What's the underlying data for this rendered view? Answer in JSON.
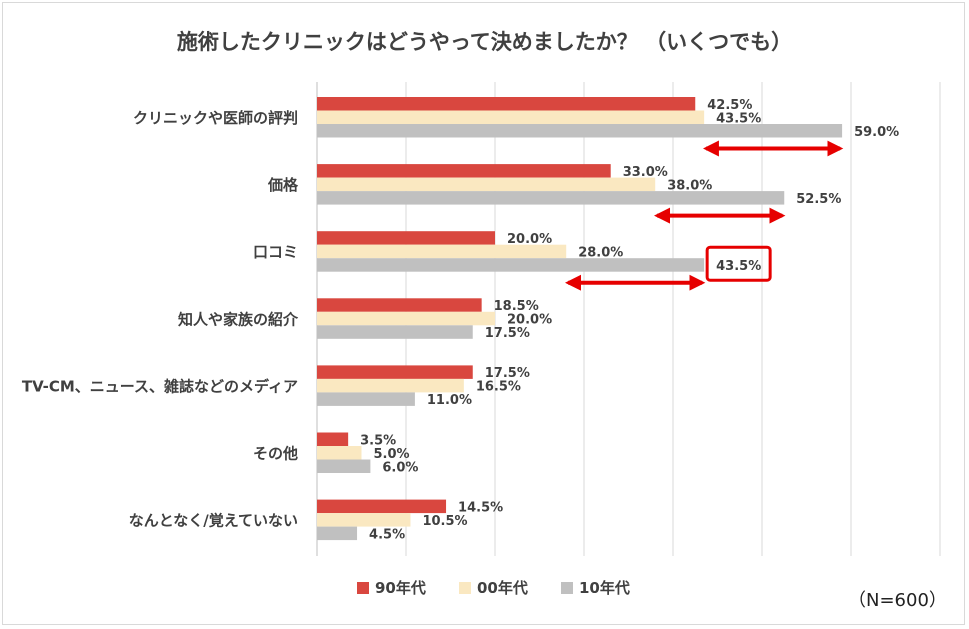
{
  "chart_data": {
    "type": "bar",
    "orientation": "horizontal",
    "title": "施術したクリニックはどうやって決めましたか？ （いくつでも）",
    "categories": [
      "クリニックや医師の評判",
      "価格",
      "口コミ",
      "知人や家族の紹介",
      "TV-CM、ニュース、雑誌などのメディア",
      "その他",
      "なんとなく/覚えていない"
    ],
    "series": [
      {
        "name": "90年代",
        "color": "#d9473f",
        "values": [
          42.5,
          33.0,
          20.0,
          18.5,
          17.5,
          3.5,
          14.5
        ],
        "labels": [
          "42.5%",
          "33.0%",
          "20.0%",
          "18.5%",
          "17.5%",
          "3.5%",
          "14.5%"
        ]
      },
      {
        "name": "00年代",
        "color": "#fae8c1",
        "values": [
          43.5,
          38.0,
          28.0,
          20.0,
          16.5,
          5.0,
          10.5
        ],
        "labels": [
          "43.5%",
          "38.0%",
          "28.0%",
          "20.0%",
          "16.5%",
          "5.0%",
          "10.5%"
        ]
      },
      {
        "name": "10年代",
        "color": "#c0c0c0",
        "values": [
          59.0,
          52.5,
          43.5,
          17.5,
          11.0,
          6.0,
          4.5
        ],
        "labels": [
          "59.0%",
          "52.5%",
          "43.5%",
          "17.5%",
          "11.0%",
          "6.0%",
          "4.5%"
        ]
      }
    ],
    "xlim": [
      0,
      70
    ],
    "grid": true,
    "legend_position": "bottom",
    "highlight": {
      "category_index": 2,
      "series_index": 2,
      "color": "#e60000"
    },
    "arrows": [
      {
        "category_index": 0,
        "from": 43.5,
        "to": 59.0
      },
      {
        "category_index": 1,
        "from": 38.0,
        "to": 52.5
      },
      {
        "category_index": 2,
        "from": 28.0,
        "to": 43.5
      }
    ],
    "arrow_color": "#e60000"
  },
  "note": "（N=600）"
}
